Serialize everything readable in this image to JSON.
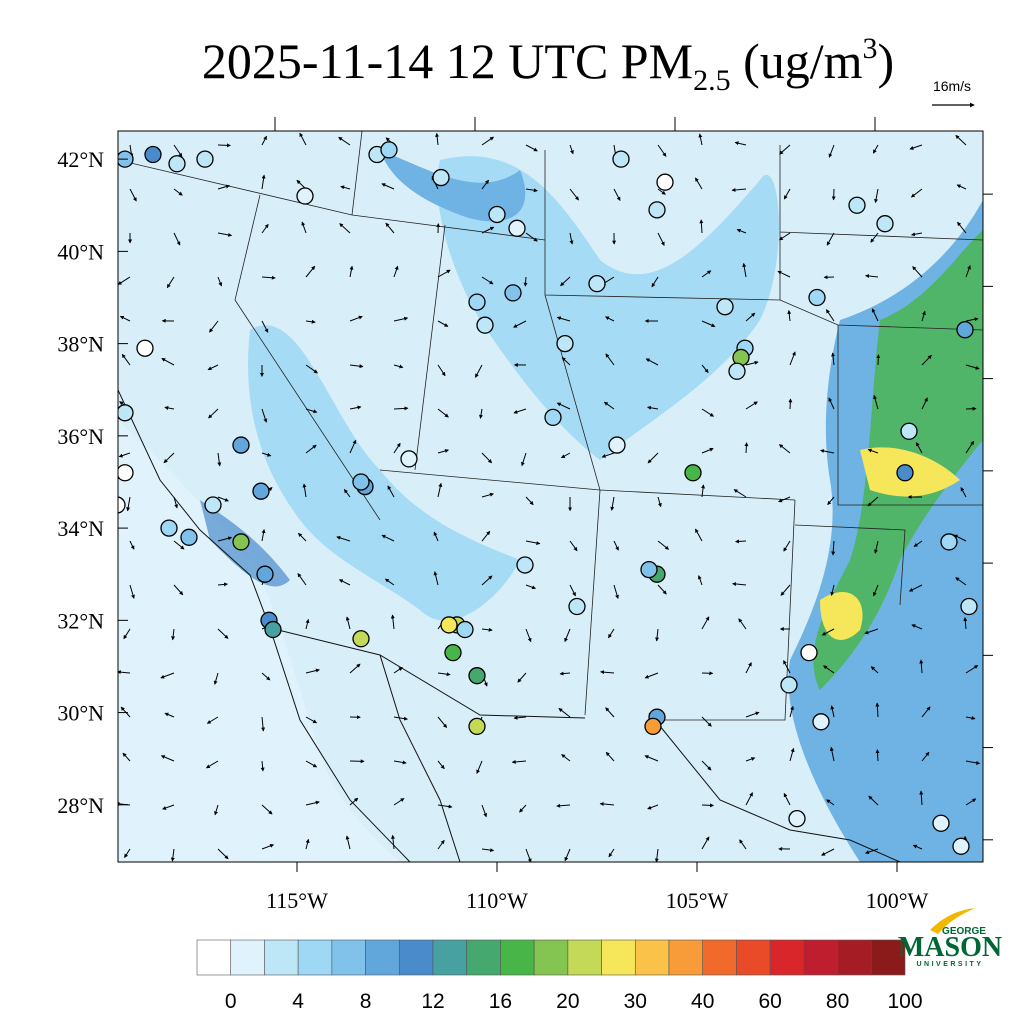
{
  "title": {
    "main": "2025-11-14 12 UTC PM",
    "sub": "2.5",
    "units": " (ug/m",
    "sup": "3",
    "close": ")"
  },
  "reference_vector": {
    "label": "16m/s"
  },
  "map": {
    "lonlim": [
      -119.475,
      -97.85
    ],
    "latlim": [
      26.76,
      42.61
    ],
    "lat_ticks": [
      {
        "value": 28,
        "label": "28°N"
      },
      {
        "value": 30,
        "label": "30°N"
      },
      {
        "value": 32,
        "label": "32°N"
      },
      {
        "value": 34,
        "label": "34°N"
      },
      {
        "value": 36,
        "label": "36°N"
      },
      {
        "value": 38,
        "label": "38°N"
      },
      {
        "value": 40,
        "label": "40°N"
      },
      {
        "value": 42,
        "label": "42°N"
      }
    ],
    "lon_ticks": [
      {
        "value": -115,
        "label": "115°W"
      },
      {
        "value": -110,
        "label": "110°W"
      },
      {
        "value": -105,
        "label": "105°W"
      },
      {
        "value": -100,
        "label": "100°W"
      }
    ]
  },
  "colorbar": {
    "levels": [
      0,
      2,
      4,
      6,
      8,
      10,
      12,
      14,
      16,
      18,
      20,
      25,
      30,
      35,
      40,
      50,
      60,
      70,
      80,
      90,
      100
    ],
    "colors": [
      "#ffffff",
      "#e0f3fc",
      "#bde6f7",
      "#9fd8f5",
      "#80c2ea",
      "#62a7dc",
      "#4a8ccb",
      "#47a1a0",
      "#45a86e",
      "#48b548",
      "#84c450",
      "#c4d957",
      "#f5e65a",
      "#fbc24a",
      "#f89c3a",
      "#f26a2b",
      "#e94a27",
      "#d8262a",
      "#be1e2d",
      "#a51c24",
      "#8b1a1a"
    ],
    "ticks": [
      0,
      4,
      8,
      12,
      16,
      20,
      30,
      40,
      60,
      80,
      100
    ]
  },
  "stations": [
    {
      "lon": -119.3,
      "lat": 42.0,
      "value": 7
    },
    {
      "lon": -118.6,
      "lat": 42.1,
      "value": 11
    },
    {
      "lon": -118.0,
      "lat": 41.9,
      "value": 4
    },
    {
      "lon": -117.3,
      "lat": 42.0,
      "value": 3
    },
    {
      "lon": -114.8,
      "lat": 41.2,
      "value": 2
    },
    {
      "lon": -113.0,
      "lat": 42.1,
      "value": 4
    },
    {
      "lon": -112.7,
      "lat": 42.2,
      "value": 5
    },
    {
      "lon": -111.4,
      "lat": 41.6,
      "value": 3
    },
    {
      "lon": -110.0,
      "lat": 40.8,
      "value": 3
    },
    {
      "lon": -109.5,
      "lat": 40.5,
      "value": 2
    },
    {
      "lon": -109.6,
      "lat": 39.1,
      "value": 7
    },
    {
      "lon": -110.3,
      "lat": 38.4,
      "value": 3
    },
    {
      "lon": -110.5,
      "lat": 38.9,
      "value": 5
    },
    {
      "lon": -108.3,
      "lat": 38.0,
      "value": 3
    },
    {
      "lon": -106.9,
      "lat": 42.0,
      "value": 3
    },
    {
      "lon": -105.8,
      "lat": 41.5,
      "value": 0
    },
    {
      "lon": -106.0,
      "lat": 40.9,
      "value": 3
    },
    {
      "lon": -107.5,
      "lat": 39.3,
      "value": 3
    },
    {
      "lon": -104.3,
      "lat": 38.8,
      "value": 3
    },
    {
      "lon": -103.8,
      "lat": 37.9,
      "value": 6
    },
    {
      "lon": -103.9,
      "lat": 37.7,
      "value": 19
    },
    {
      "lon": -104.0,
      "lat": 37.4,
      "value": 3
    },
    {
      "lon": -105.1,
      "lat": 35.2,
      "value": 17
    },
    {
      "lon": -106.0,
      "lat": 33.0,
      "value": 15
    },
    {
      "lon": -106.2,
      "lat": 33.1,
      "value": 8
    },
    {
      "lon": -106.0,
      "lat": 29.9,
      "value": 10
    },
    {
      "lon": -106.1,
      "lat": 29.7,
      "value": 40
    },
    {
      "lon": -110.5,
      "lat": 30.8,
      "value": 16
    },
    {
      "lon": -110.5,
      "lat": 29.7,
      "value": 25
    },
    {
      "lon": -111.0,
      "lat": 31.9,
      "value": 25
    },
    {
      "lon": -111.2,
      "lat": 31.9,
      "value": 30
    },
    {
      "lon": -111.1,
      "lat": 31.3,
      "value": 18
    },
    {
      "lon": -110.8,
      "lat": 31.8,
      "value": 5
    },
    {
      "lon": -113.4,
      "lat": 31.6,
      "value": 22
    },
    {
      "lon": -113.3,
      "lat": 34.9,
      "value": 10
    },
    {
      "lon": -113.4,
      "lat": 35.0,
      "value": 8
    },
    {
      "lon": -112.2,
      "lat": 35.5,
      "value": 2
    },
    {
      "lon": -115.9,
      "lat": 34.8,
      "value": 10
    },
    {
      "lon": -116.4,
      "lat": 35.8,
      "value": 9
    },
    {
      "lon": -117.1,
      "lat": 34.5,
      "value": 4
    },
    {
      "lon": -117.7,
      "lat": 33.8,
      "value": 8
    },
    {
      "lon": -116.4,
      "lat": 33.7,
      "value": 20
    },
    {
      "lon": -115.8,
      "lat": 33.0,
      "value": 10
    },
    {
      "lon": -115.7,
      "lat": 32.0,
      "value": 11
    },
    {
      "lon": -115.6,
      "lat": 31.8,
      "value": 14
    },
    {
      "lon": -118.2,
      "lat": 34.0,
      "value": 6
    },
    {
      "lon": -119.3,
      "lat": 36.5,
      "value": 4
    },
    {
      "lon": -119.5,
      "lat": 34.5,
      "value": 0
    },
    {
      "lon": -119.3,
      "lat": 35.2,
      "value": 0
    },
    {
      "lon": -118.8,
      "lat": 37.9,
      "value": 0
    },
    {
      "lon": -102.2,
      "lat": 31.3,
      "value": 0
    },
    {
      "lon": -99.8,
      "lat": 35.2,
      "value": 11
    },
    {
      "lon": -98.3,
      "lat": 38.3,
      "value": 9
    },
    {
      "lon": -99.7,
      "lat": 36.1,
      "value": 4
    },
    {
      "lon": -98.7,
      "lat": 33.7,
      "value": 5
    },
    {
      "lon": -98.2,
      "lat": 32.3,
      "value": 3
    },
    {
      "lon": -98.4,
      "lat": 27.1,
      "value": 1
    },
    {
      "lon": -102.7,
      "lat": 30.6,
      "value": 3
    },
    {
      "lon": -101.9,
      "lat": 29.8,
      "value": 2
    },
    {
      "lon": -102.5,
      "lat": 27.7,
      "value": 2
    },
    {
      "lon": -98.9,
      "lat": 27.6,
      "value": 2
    },
    {
      "lon": -101.0,
      "lat": 41.0,
      "value": 4
    },
    {
      "lon": -100.3,
      "lat": 40.6,
      "value": 3
    },
    {
      "lon": -102.0,
      "lat": 39.0,
      "value": 5
    },
    {
      "lon": -108.6,
      "lat": 36.4,
      "value": 5
    },
    {
      "lon": -107.0,
      "lat": 35.8,
      "value": 2
    },
    {
      "lon": -109.3,
      "lat": 33.2,
      "value": 3
    },
    {
      "lon": -108.0,
      "lat": 32.3,
      "value": 3
    }
  ],
  "logo": {
    "top": "GEORGE",
    "name": "MASON",
    "bottom": "UNIVERSITY"
  }
}
